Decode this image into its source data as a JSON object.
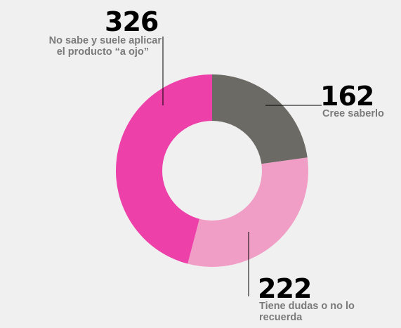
{
  "chart_data": {
    "type": "pie",
    "donut": true,
    "title": "",
    "categories": [
      "Cree saberlo",
      "Tiene dudas o no lo recuerda",
      "No sabe y suele aplicar el producto “a ojo”"
    ],
    "values": [
      162,
      222,
      326
    ],
    "value_labels": [
      "162",
      "222",
      "326"
    ],
    "colors": [
      "#6b6a64",
      "#f09ec6",
      "#ee40a9"
    ],
    "labels": {
      "cree": {
        "value": "162",
        "line1": "Cree saberlo"
      },
      "tiene": {
        "value": "222",
        "line1": "Tiene dudas o no lo",
        "line2": "recuerda"
      },
      "nosabe": {
        "value": "326",
        "line1": "No sabe y suele aplicar",
        "line2": "el producto “a ojo”"
      }
    }
  }
}
